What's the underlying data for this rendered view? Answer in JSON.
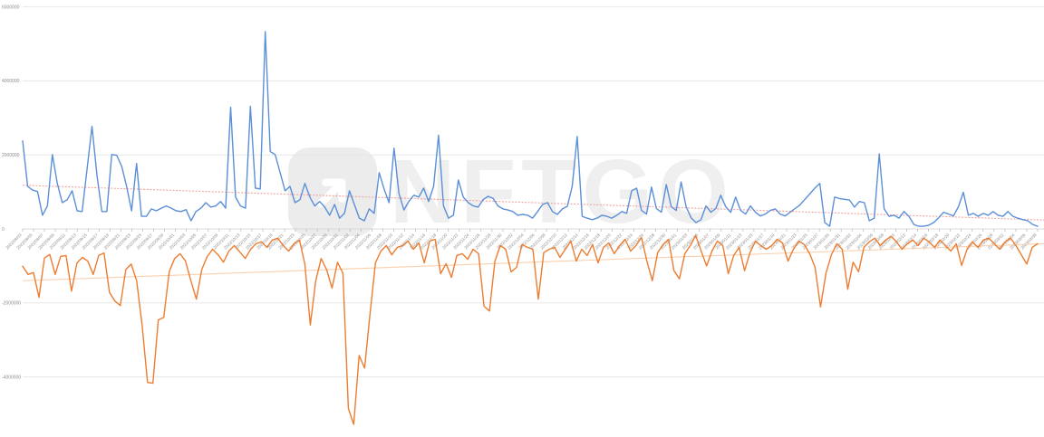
{
  "watermark": {
    "text": "NFTGO",
    "logo": "arrow-up-right-icon"
  },
  "chart_data": {
    "type": "line",
    "title": "",
    "xlabel": "",
    "ylabel": "",
    "grid": true,
    "legend": "none",
    "ylim": [
      -5700000,
      6200000
    ],
    "zero_axis": true,
    "y_ticks": [
      {
        "label": "6000000",
        "value": 6000000
      },
      {
        "label": "4000000",
        "value": 4000000
      },
      {
        "label": "2000000",
        "value": 2000000
      },
      {
        "label": "0",
        "value": 0
      },
      {
        "label": "-2000000",
        "value": -2000000
      },
      {
        "label": "-4000000",
        "value": -4000000
      }
    ],
    "x_tick_labels": [
      "2022/09/03",
      "2022/09/05",
      "2022/09/07",
      "2022/09/09",
      "2022/09/11",
      "2022/09/13",
      "2022/09/15",
      "2022/09/17",
      "2022/09/19",
      "2022/09/21",
      "2022/09/23",
      "2022/09/25",
      "2022/09/27",
      "2022/09/29",
      "2022/10/01",
      "2022/10/03",
      "2022/10/05",
      "2022/10/07",
      "2022/10/09",
      "2022/10/11",
      "2022/10/13",
      "2022/10/15",
      "2022/10/17",
      "2022/10/19",
      "2022/10/21",
      "2022/10/23",
      "2022/10/25",
      "2022/10/27",
      "2022/10/29",
      "2022/10/31",
      "2022/11/02",
      "2022/11/04",
      "2022/11/06",
      "2022/11/08",
      "2022/11/10",
      "2022/11/12",
      "2022/11/14",
      "2022/11/16",
      "2022/11/18",
      "2022/11/20",
      "2022/11/22",
      "2022/11/24",
      "2022/11/26",
      "2022/11/28",
      "2022/11/30",
      "2022/12/02",
      "2022/12/04",
      "2022/12/06",
      "2022/12/08",
      "2022/12/10",
      "2022/12/12",
      "2022/12/14",
      "2022/12/16",
      "2022/12/18",
      "2022/12/20",
      "2022/12/22",
      "2022/12/24",
      "2022/12/26",
      "2022/12/28",
      "2022/12/30",
      "2023/01/01",
      "2023/01/03",
      "2023/01/05",
      "2023/01/07",
      "2023/01/09",
      "2023/01/11",
      "2023/01/13",
      "2023/01/15",
      "2023/01/17",
      "2023/01/19",
      "2023/01/21",
      "2023/01/23",
      "2023/01/25",
      "2023/01/27",
      "2023/01/29",
      "2023/01/31",
      "2023/02/02",
      "2023/02/04",
      "2023/02/06",
      "2023/02/08",
      "2023/02/10",
      "2023/02/12",
      "2023/02/14",
      "2023/02/16",
      "2023/02/18",
      "2023/02/20",
      "2023/02/22",
      "2023/02/24",
      "2023/02/26",
      "2023/02/28",
      "2023/03/02",
      "2023/03/04",
      "2023/03/06",
      "2023/03/08"
    ],
    "series": [
      {
        "name": "positive-series",
        "color": "#5b8fd8",
        "values": [
          2380000,
          1150000,
          1050000,
          1010000,
          370000,
          620000,
          2010000,
          1230000,
          710000,
          790000,
          1030000,
          490000,
          470000,
          1600000,
          2770000,
          1450000,
          470000,
          470000,
          2010000,
          1990000,
          1690000,
          1150000,
          490000,
          1770000,
          340000,
          340000,
          540000,
          490000,
          560000,
          620000,
          560000,
          490000,
          470000,
          520000,
          220000,
          470000,
          560000,
          710000,
          590000,
          620000,
          740000,
          560000,
          3290000,
          860000,
          620000,
          560000,
          3310000,
          1100000,
          1080000,
          5330000,
          2090000,
          2010000,
          1520000,
          1030000,
          1150000,
          710000,
          790000,
          1230000,
          860000,
          620000,
          740000,
          590000,
          370000,
          660000,
          290000,
          420000,
          1030000,
          660000,
          290000,
          220000,
          540000,
          420000,
          1520000,
          1080000,
          710000,
          2180000,
          960000,
          510000,
          740000,
          910000,
          860000,
          1100000,
          740000,
          1150000,
          2530000,
          620000,
          290000,
          370000,
          1320000,
          860000,
          710000,
          620000,
          590000,
          790000,
          880000,
          830000,
          620000,
          540000,
          510000,
          470000,
          370000,
          390000,
          370000,
          290000,
          470000,
          660000,
          710000,
          470000,
          390000,
          540000,
          610000,
          1150000,
          2500000,
          340000,
          290000,
          250000,
          290000,
          370000,
          340000,
          290000,
          370000,
          470000,
          420000,
          1030000,
          1100000,
          500000,
          400000,
          1130000,
          550000,
          450000,
          1200000,
          600000,
          500000,
          1270000,
          600000,
          300000,
          170000,
          250000,
          620000,
          450000,
          550000,
          910000,
          600000,
          450000,
          860000,
          500000,
          400000,
          620000,
          450000,
          350000,
          400000,
          500000,
          540000,
          400000,
          350000,
          450000,
          550000,
          650000,
          800000,
          950000,
          1100000,
          1230000,
          170000,
          70000,
          860000,
          820000,
          800000,
          780000,
          590000,
          740000,
          710000,
          220000,
          290000,
          2030000,
          540000,
          340000,
          370000,
          290000,
          470000,
          340000,
          120000,
          70000,
          70000,
          100000,
          170000,
          300000,
          450000,
          400000,
          350000,
          600000,
          990000,
          370000,
          420000,
          340000,
          420000,
          370000,
          470000,
          370000,
          340000,
          470000,
          340000,
          290000,
          250000,
          220000,
          120000,
          70000
        ]
      },
      {
        "name": "negative-series",
        "color": "#ed7d31",
        "values": [
          -1010000,
          -1230000,
          -1180000,
          -1850000,
          -790000,
          -690000,
          -1230000,
          -740000,
          -720000,
          -1680000,
          -920000,
          -770000,
          -870000,
          -1230000,
          -720000,
          -650000,
          -1720000,
          -1950000,
          -2070000,
          -1100000,
          -950000,
          -1400000,
          -2600000,
          -4150000,
          -4170000,
          -2460000,
          -2390000,
          -1160000,
          -800000,
          -670000,
          -870000,
          -1410000,
          -1900000,
          -1100000,
          -750000,
          -550000,
          -700000,
          -900000,
          -600000,
          -450000,
          -620000,
          -800000,
          -550000,
          -400000,
          -350000,
          -500000,
          -300000,
          -250000,
          -450000,
          -600000,
          -400000,
          -300000,
          -950000,
          -2600000,
          -1400000,
          -800000,
          -1100000,
          -1600000,
          -900000,
          -1200000,
          -4850000,
          -5280000,
          -3420000,
          -3760000,
          -2300000,
          -920000,
          -600000,
          -450000,
          -700000,
          -500000,
          -450000,
          -330000,
          -550000,
          -380000,
          -920000,
          -330000,
          -280000,
          -1210000,
          -940000,
          -1310000,
          -720000,
          -670000,
          -820000,
          -550000,
          -670000,
          -2090000,
          -2220000,
          -870000,
          -450000,
          -550000,
          -1160000,
          -1040000,
          -420000,
          -500000,
          -550000,
          -1900000,
          -640000,
          -550000,
          -500000,
          -770000,
          -550000,
          -330000,
          -870000,
          -550000,
          -720000,
          -420000,
          -920000,
          -500000,
          -380000,
          -670000,
          -450000,
          -280000,
          -600000,
          -450000,
          -230000,
          -870000,
          -1400000,
          -640000,
          -420000,
          -280000,
          -1130000,
          -1350000,
          -670000,
          -450000,
          -180000,
          -600000,
          -1000000,
          -600000,
          -330000,
          -450000,
          -1210000,
          -720000,
          -500000,
          -1130000,
          -640000,
          -330000,
          -450000,
          -550000,
          -450000,
          -280000,
          -380000,
          -870000,
          -550000,
          -330000,
          -420000,
          -670000,
          -1040000,
          -2110000,
          -1200000,
          -700000,
          -400000,
          -550000,
          -1630000,
          -900000,
          -1160000,
          -500000,
          -350000,
          -250000,
          -450000,
          -300000,
          -200000,
          -350000,
          -550000,
          -400000,
          -300000,
          -450000,
          -250000,
          -350000,
          -500000,
          -300000,
          -450000,
          -600000,
          -400000,
          -990000,
          -550000,
          -350000,
          -500000,
          -300000,
          -250000,
          -400000,
          -550000,
          -350000,
          -250000,
          -450000,
          -700000,
          -950000,
          -500000,
          -400000
        ]
      }
    ],
    "trendlines": [
      {
        "for": "positive-series",
        "color": "#f2a29c",
        "style": "dotted",
        "start_value": 1180000,
        "end_value": 240000
      },
      {
        "for": "negative-series",
        "color": "#fbd0ae",
        "style": "solid",
        "start_value": -1400000,
        "end_value": -400000
      }
    ],
    "layout": {
      "gridline_color": "#e7e7e7",
      "zero_axis_color": "#d9d9d9",
      "tick_color": "#bbbbbb",
      "label_color": "#8c8c8c"
    }
  }
}
